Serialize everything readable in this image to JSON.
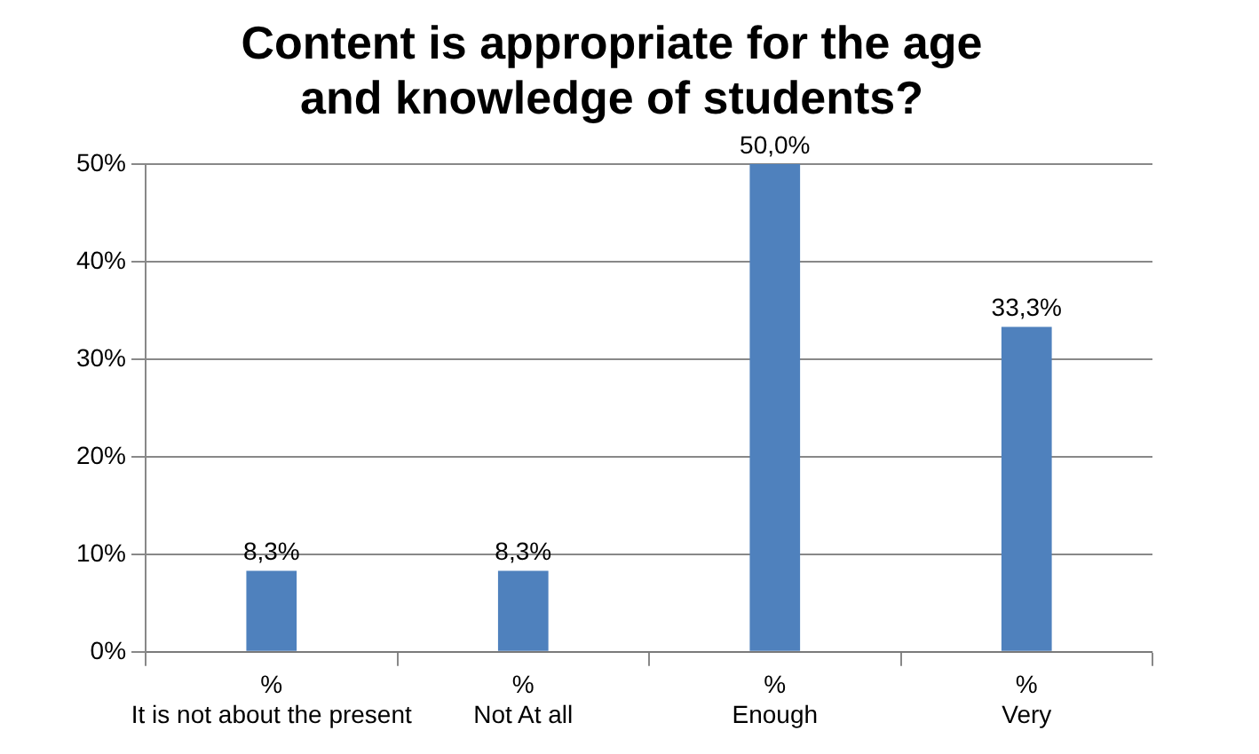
{
  "chart_data": {
    "type": "bar",
    "title": "Content is appropriate for the age\nand knowledge of students?",
    "categories": [
      "It is not about the present",
      "Not At all",
      "Enough",
      "Very"
    ],
    "series": [
      {
        "name": "%",
        "color": "#4f81bd",
        "values": [
          8.3,
          8.3,
          50.0,
          33.3
        ],
        "value_labels": [
          "8,3%",
          "8,3%",
          "50,0%",
          "33,3%"
        ]
      }
    ],
    "ylim": [
      0,
      50
    ],
    "yticks": [
      {
        "value": 0,
        "label": "0%"
      },
      {
        "value": 10,
        "label": "10%"
      },
      {
        "value": 20,
        "label": "20%"
      },
      {
        "value": 30,
        "label": "30%"
      },
      {
        "value": 40,
        "label": "40%"
      },
      {
        "value": 50,
        "label": "50%"
      }
    ],
    "grid": "y",
    "legend": false
  }
}
